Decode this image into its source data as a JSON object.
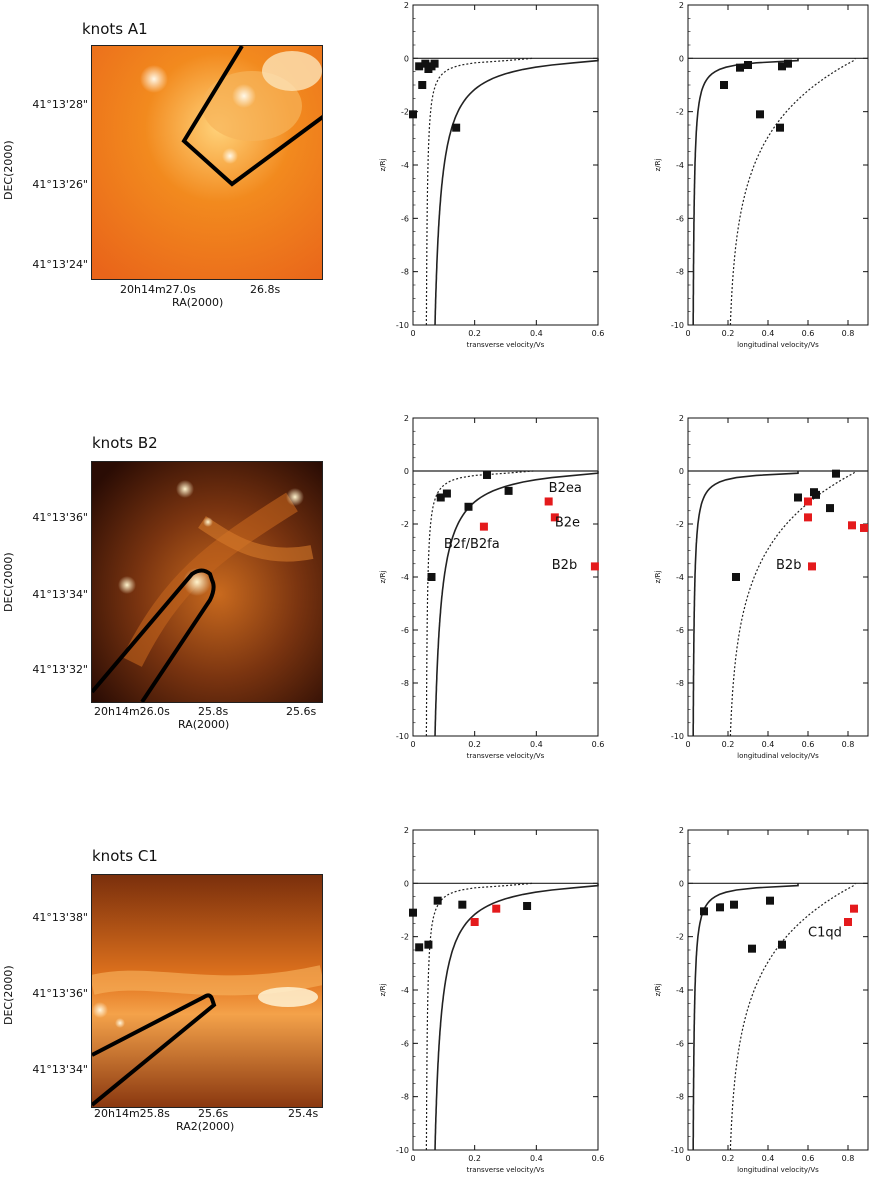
{
  "panels": [
    {
      "title": "knots A1",
      "image": {
        "dec_ticks": [
          "41°13'28\"",
          "41°13'26\"",
          "41°13'24\""
        ],
        "ra_ticks": [
          "20h14m27.0s",
          "26.8s"
        ],
        "xlabel": "RA(2000)",
        "ylabel": "DEC(2000)",
        "colormap": "orange",
        "aperture": "aperture-outline"
      },
      "transverse_chart": {
        "type": "line",
        "xlabel": "transverse velocity/Vs",
        "ylabel": "z/Rj",
        "xlim": [
          0,
          0.6
        ],
        "ylim": [
          -10,
          2
        ],
        "xticks": [
          "0",
          "0.2",
          "0.4",
          "0.6"
        ],
        "yticks": [
          "2",
          "0",
          "-2",
          "-4",
          "-6",
          "-8",
          "-10"
        ],
        "points_black": [
          [
            0.02,
            -0.3
          ],
          [
            0.04,
            -0.2
          ],
          [
            0.05,
            -0.4
          ],
          [
            0.06,
            -0.3
          ],
          [
            0.07,
            -0.2
          ],
          [
            0.03,
            -1.0
          ],
          [
            0.0,
            -2.1
          ],
          [
            0.14,
            -2.6
          ]
        ],
        "points_red": [],
        "labels": []
      },
      "longitudinal_chart": {
        "type": "line",
        "xlabel": "longitudinal velocity/Vs",
        "ylabel": "z/Rj",
        "xlim": [
          0,
          0.9
        ],
        "ylim": [
          -10,
          2
        ],
        "xticks": [
          "0",
          "0.2",
          "0.4",
          "0.6",
          "0.8"
        ],
        "yticks": [
          "2",
          "0",
          "-2",
          "-4",
          "-6",
          "-8",
          "-10"
        ],
        "points_black": [
          [
            0.18,
            -1.0
          ],
          [
            0.26,
            -0.35
          ],
          [
            0.3,
            -0.25
          ],
          [
            0.36,
            -2.1
          ],
          [
            0.46,
            -2.6
          ],
          [
            0.47,
            -0.3
          ],
          [
            0.5,
            -0.2
          ]
        ],
        "points_red": [],
        "labels": []
      }
    },
    {
      "title": "knots B2",
      "image": {
        "dec_ticks": [
          "41°13'36\"",
          "41°13'34\"",
          "41°13'32\""
        ],
        "ra_ticks": [
          "20h14m26.0s",
          "25.8s",
          "25.6s"
        ],
        "xlabel": "RA(2000)",
        "ylabel": "DEC(2000)",
        "colormap": "dark-orange",
        "aperture": "aperture-outline"
      },
      "transverse_chart": {
        "type": "line",
        "xlabel": "transverse velocity/Vs",
        "ylabel": "z/Rj",
        "xlim": [
          0,
          0.6
        ],
        "ylim": [
          -10,
          2
        ],
        "xticks": [
          "0",
          "0.2",
          "0.4",
          "0.6"
        ],
        "yticks": [
          "2",
          "0",
          "-2",
          "-4",
          "-6",
          "-8",
          "-10"
        ],
        "points_black": [
          [
            0.06,
            -4.0
          ],
          [
            0.09,
            -1.0
          ],
          [
            0.11,
            -0.85
          ],
          [
            0.18,
            -1.35
          ],
          [
            0.24,
            -0.15
          ],
          [
            0.31,
            -0.75
          ]
        ],
        "points_red": [
          [
            0.23,
            -2.1
          ],
          [
            0.44,
            -1.15
          ],
          [
            0.46,
            -1.75
          ],
          [
            0.59,
            -3.6
          ]
        ],
        "labels": [
          {
            "text": "B2ea",
            "x": 0.44,
            "y": -0.8
          },
          {
            "text": "B2e",
            "x": 0.46,
            "y": -2.1
          },
          {
            "text": "B2f/B2fa",
            "x": 0.1,
            "y": -2.9
          },
          {
            "text": "B2b",
            "x": 0.45,
            "y": -3.7
          }
        ]
      },
      "longitudinal_chart": {
        "type": "line",
        "xlabel": "longitudinal velocity/Vs",
        "ylabel": "z/Rj",
        "xlim": [
          0,
          0.9
        ],
        "ylim": [
          -10,
          2
        ],
        "xticks": [
          "0",
          "0.2",
          "0.4",
          "0.6",
          "0.8"
        ],
        "yticks": [
          "2",
          "0",
          "-2",
          "-4",
          "-6",
          "-8",
          "-10"
        ],
        "points_black": [
          [
            0.24,
            -4.0
          ],
          [
            0.55,
            -1.0
          ],
          [
            0.63,
            -0.8
          ],
          [
            0.64,
            -0.9
          ],
          [
            0.71,
            -1.4
          ],
          [
            0.74,
            -0.1
          ]
        ],
        "points_red": [
          [
            0.6,
            -1.15
          ],
          [
            0.6,
            -1.75
          ],
          [
            0.62,
            -3.6
          ],
          [
            0.82,
            -2.05
          ],
          [
            0.88,
            -2.15
          ]
        ],
        "labels": [
          {
            "text": "B2b",
            "x": 0.44,
            "y": -3.7
          }
        ]
      }
    },
    {
      "title": "knots C1",
      "image": {
        "dec_ticks": [
          "41°13'38\"",
          "41°13'36\"",
          "41°13'34\""
        ],
        "ra_ticks": [
          "20h14m25.8s",
          "25.6s",
          "25.4s"
        ],
        "xlabel": "RA2(2000)",
        "ylabel": "DEC(2000)",
        "colormap": "orange",
        "aperture": "aperture-outline"
      },
      "transverse_chart": {
        "type": "line",
        "xlabel": "transverse velocity/Vs",
        "ylabel": "z/Rj",
        "xlim": [
          0,
          0.6
        ],
        "ylim": [
          -10,
          2
        ],
        "xticks": [
          "0",
          "0.2",
          "0.4",
          "0.6"
        ],
        "yticks": [
          "2",
          "0",
          "-2",
          "-4",
          "-6",
          "-8",
          "-10"
        ],
        "points_black": [
          [
            0.0,
            -1.1
          ],
          [
            0.02,
            -2.4
          ],
          [
            0.05,
            -2.3
          ],
          [
            0.08,
            -0.65
          ],
          [
            0.16,
            -0.8
          ],
          [
            0.37,
            -0.85
          ]
        ],
        "points_red": [
          [
            0.2,
            -1.45
          ],
          [
            0.27,
            -0.95
          ]
        ],
        "labels": []
      },
      "longitudinal_chart": {
        "type": "line",
        "xlabel": "longitudinal velocity/Vs",
        "ylabel": "z/Rj",
        "xlim": [
          0,
          0.9
        ],
        "ylim": [
          -10,
          2
        ],
        "xticks": [
          "0",
          "0.2",
          "0.4",
          "0.6",
          "0.8"
        ],
        "yticks": [
          "2",
          "0",
          "-2",
          "-4",
          "-6",
          "-8",
          "-10"
        ],
        "points_black": [
          [
            0.08,
            -1.05
          ],
          [
            0.16,
            -0.9
          ],
          [
            0.23,
            -0.8
          ],
          [
            0.32,
            -2.45
          ],
          [
            0.41,
            -0.65
          ],
          [
            0.47,
            -2.3
          ]
        ],
        "points_red": [
          [
            0.8,
            -1.45
          ],
          [
            0.83,
            -0.95
          ]
        ],
        "labels": [
          {
            "text": "C1qd",
            "x": 0.6,
            "y": -2.0
          }
        ]
      }
    }
  ],
  "chart_data": [
    {
      "type": "scatter",
      "panel": "A1 transverse",
      "xlabel": "transverse velocity/Vs",
      "ylabel": "z/Rj",
      "xlim": [
        0,
        0.6
      ],
      "ylim": [
        -10,
        2
      ]
    },
    {
      "type": "scatter",
      "panel": "A1 longitudinal",
      "xlabel": "longitudinal velocity/Vs",
      "ylabel": "z/Rj",
      "xlim": [
        0,
        0.9
      ],
      "ylim": [
        -10,
        2
      ]
    },
    {
      "type": "scatter",
      "panel": "B2 transverse",
      "xlabel": "transverse velocity/Vs",
      "ylabel": "z/Rj",
      "xlim": [
        0,
        0.6
      ],
      "ylim": [
        -10,
        2
      ]
    },
    {
      "type": "scatter",
      "panel": "B2 longitudinal",
      "xlabel": "longitudinal velocity/Vs",
      "ylabel": "z/Rj",
      "xlim": [
        0,
        0.9
      ],
      "ylim": [
        -10,
        2
      ]
    },
    {
      "type": "scatter",
      "panel": "C1 transverse",
      "xlabel": "transverse velocity/Vs",
      "ylabel": "z/Rj",
      "xlim": [
        0,
        0.6
      ],
      "ylim": [
        -10,
        2
      ]
    },
    {
      "type": "scatter",
      "panel": "C1 longitudinal",
      "xlabel": "longitudinal velocity/Vs",
      "ylabel": "z/Rj",
      "xlim": [
        0,
        0.9
      ],
      "ylim": [
        -10,
        2
      ]
    }
  ],
  "colors": {
    "black_marker": "#111111",
    "red_marker": "#e41a1c",
    "curve": "#222222"
  }
}
